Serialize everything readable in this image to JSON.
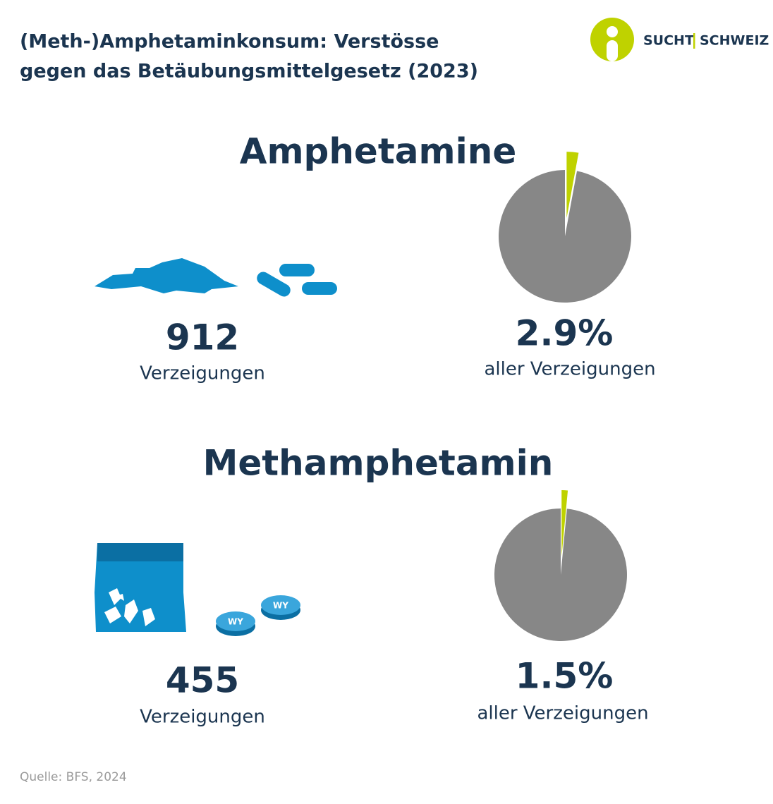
{
  "title": [
    "(Meth-)Amphetaminkonsum: Verstösse",
    "gegen das Betäubungsmittelgesetz (2023)"
  ],
  "logo": [
    "SUCHT",
    "SCHWEIZ"
  ],
  "source": "Quelle: BFS, 2024",
  "chart_data": [
    {
      "type": "pie",
      "title": "Amphetamine",
      "count": 912,
      "count_label": "Verzeigungen",
      "categories": [
        null,
        null
      ],
      "values": [
        2.9,
        97.1
      ],
      "value_labels": [
        "2.9%",
        null
      ],
      "colors": [
        "#bfd200",
        "#878787"
      ],
      "caption": "aller Verzeigungen"
    },
    {
      "type": "pie",
      "title": "Methamphetamin",
      "count": 455,
      "count_label": "Verzeigungen",
      "categories": [
        null,
        null
      ],
      "values": [
        1.5,
        98.5
      ],
      "value_labels": [
        "1.5%",
        null
      ],
      "colors": [
        "#bfd200",
        "#878787"
      ],
      "caption": "aller Verzeigungen"
    }
  ]
}
